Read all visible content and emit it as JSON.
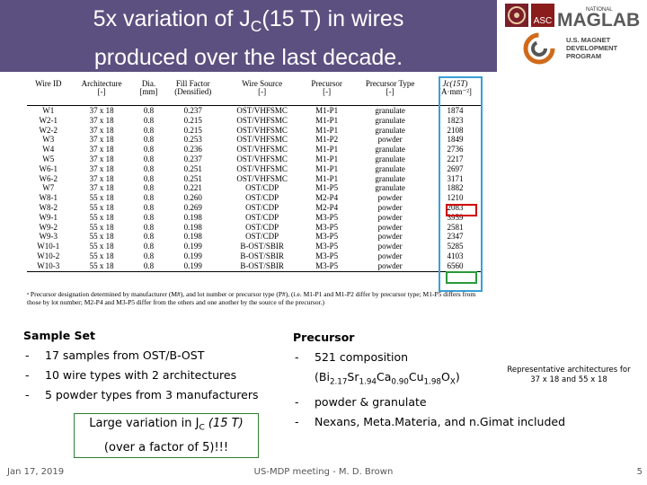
{
  "slide": {
    "title_line1_pre": "5x variation of J",
    "title_line1_sub": "C",
    "title_line1_post": "(15 T) in wires",
    "title_line2": "produced over the last decade.",
    "date": "Jan 17, 2019",
    "center_footer": "US-MDP meeting - M. D. Brown",
    "page_number": "5"
  },
  "logos": {
    "asc_text": "ASC",
    "national_text": "NATIONAL",
    "maglab_text": "MAGLAB",
    "mdp_line1": "U.S. MAGNET",
    "mdp_line2": "DEVELOPMENT",
    "mdp_line3": "PROGRAM"
  },
  "table": {
    "headers": [
      {
        "l1": "Wire ID",
        "l2": ""
      },
      {
        "l1": "Architecture",
        "l2": "[-]"
      },
      {
        "l1": "Dia.",
        "l2": "[mm]"
      },
      {
        "l1": "Fill Factor",
        "l2": "(Densified)"
      },
      {
        "l1": "Wire Source",
        "l2": "[-]"
      },
      {
        "l1": "Precursor",
        "l2": "[-]"
      },
      {
        "l1": "Precursor Type",
        "l2": "[-]"
      },
      {
        "l1": "Jc(15T)",
        "l2": "[A·mm⁻²]"
      }
    ],
    "rows": [
      [
        "W1",
        "37 x 18",
        "0.8",
        "0.237",
        "OST/VHFSMC",
        "M1-P1",
        "granulate",
        "1874"
      ],
      [
        "W2-1",
        "37 x 18",
        "0.8",
        "0.215",
        "OST/VHFSMC",
        "M1-P1",
        "granulate",
        "1823"
      ],
      [
        "W2-2",
        "37 x 18",
        "0.8",
        "0.215",
        "OST/VHFSMC",
        "M1-P1",
        "granulate",
        "2108"
      ],
      [
        "W3",
        "37 x 18",
        "0.8",
        "0.253",
        "OST/VHFSMC",
        "M1-P2",
        "powder",
        "1849"
      ],
      [
        "W4",
        "37 x 18",
        "0.8",
        "0.236",
        "OST/VHFSMC",
        "M1-P1",
        "granulate",
        "2736"
      ],
      [
        "W5",
        "37 x 18",
        "0.8",
        "0.237",
        "OST/VHFSMC",
        "M1-P1",
        "granulate",
        "2217"
      ],
      [
        "W6-1",
        "37 x 18",
        "0.8",
        "0.251",
        "OST/VHFSMC",
        "M1-P1",
        "granulate",
        "2697"
      ],
      [
        "W6-2",
        "37 x 18",
        "0.8",
        "0.251",
        "OST/VHFSMC",
        "M1-P1",
        "granulate",
        "3171"
      ],
      [
        "W7",
        "37 x 18",
        "0.8",
        "0.221",
        "OST/CDP",
        "M1-P5",
        "granulate",
        "1882"
      ],
      [
        "W8-1",
        "55 x 18",
        "0.8",
        "0.260",
        "OST/CDP",
        "M2-P4",
        "powder",
        "1210"
      ],
      [
        "W8-2",
        "55 x 18",
        "0.8",
        "0.269",
        "OST/CDP",
        "M2-P4",
        "powder",
        "2083"
      ],
      [
        "W9-1",
        "55 x 18",
        "0.8",
        "0.198",
        "OST/CDP",
        "M3-P5",
        "powder",
        "3959"
      ],
      [
        "W9-2",
        "55 x 18",
        "0.8",
        "0.198",
        "OST/CDP",
        "M3-P5",
        "powder",
        "2581"
      ],
      [
        "W9-3",
        "55 x 18",
        "0.8",
        "0.198",
        "OST/CDP",
        "M3-P5",
        "powder",
        "2347"
      ],
      [
        "W10-1",
        "55 x 18",
        "0.8",
        "0.199",
        "B-OST/SBIR",
        "M3-P5",
        "powder",
        "5285"
      ],
      [
        "W10-2",
        "55 x 18",
        "0.8",
        "0.199",
        "B-OST/SBIR",
        "M3-P5",
        "powder",
        "4103"
      ],
      [
        "W10-3",
        "55 x 18",
        "0.8",
        "0.199",
        "B-OST/SBIR",
        "M3-P5",
        "powder",
        "6560"
      ]
    ],
    "footnote": "ᵃ Precursor designation determined by manufacturer (M#), and lot number or precursor type (P#), (i.e. M1-P1 and M1-P2 differ by precursor type; M1-P5 differs from those by lot number; M2-P4 and M3-P5 differ from the others and one another by the source of the precursor.)"
  },
  "sample_set": {
    "heading": "Sample Set",
    "items": [
      "17 samples from OST/B-OST",
      "10 wire types with 2 architectures",
      "5 powder types from 3 manufacturers"
    ]
  },
  "precursor": {
    "heading": "Precursor",
    "item1": "521 composition",
    "formula": {
      "a": "(Bi",
      "a_sub": "2.17",
      "b": "Sr",
      "b_sub": "1.94",
      "c": "Ca",
      "c_sub": "0.90",
      "d": "Cu",
      "d_sub": "1.98",
      "e": "O",
      "e_sub": "X",
      "f": ")"
    },
    "item2": "powder & granulate",
    "item3": "Nexans, Meta.Materia, and n.Gimat included"
  },
  "callout": {
    "line1_pre": "Large variation in J",
    "line1_sub": "C",
    "line1_post": " (15 T)",
    "line2": "(over a factor of 5)!!!"
  },
  "rep_note": "Representative architectures for 37 x 18 and 55 x 18"
}
